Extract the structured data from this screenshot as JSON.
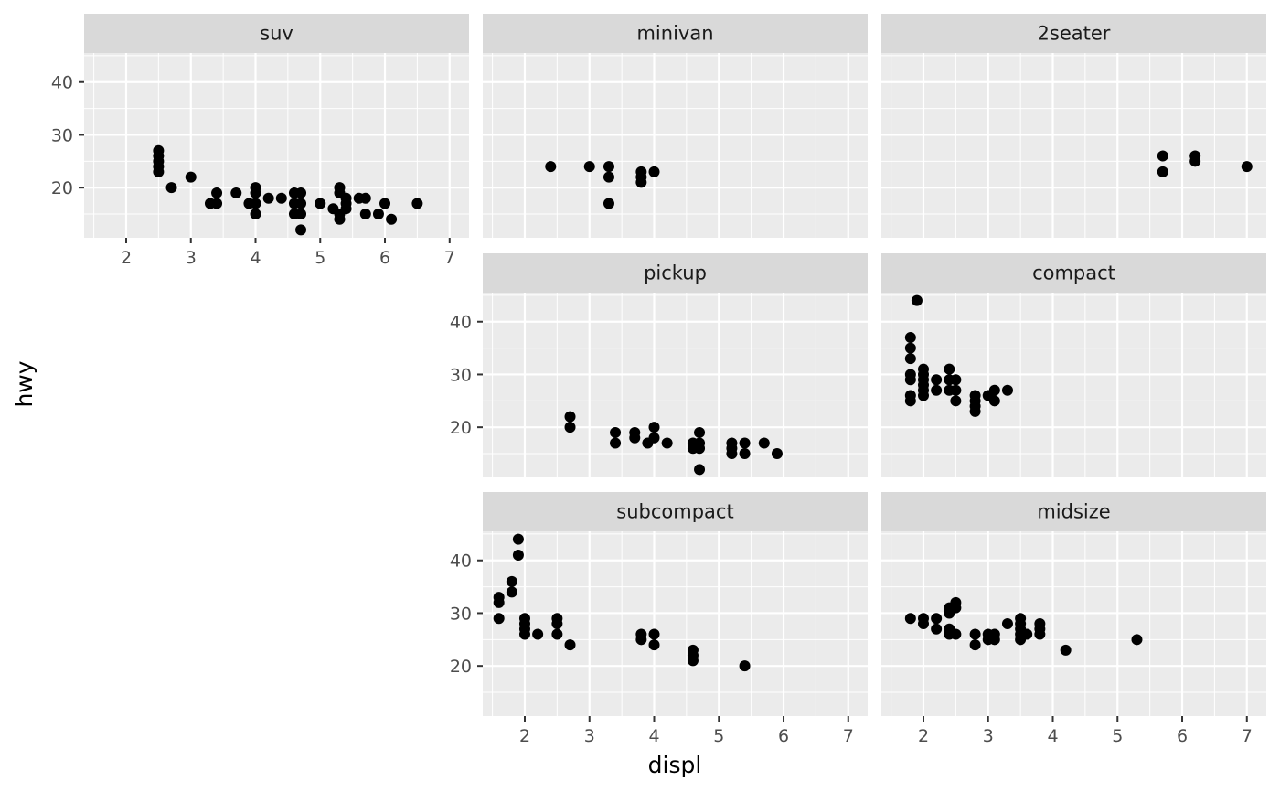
{
  "chart_data": {
    "type": "scatter",
    "facet_by": "class",
    "layout": {
      "ncol": 3,
      "nrow": 3
    },
    "xlabel": "displ",
    "ylabel": "hwy",
    "xlim": [
      1.35,
      7.3
    ],
    "ylim": [
      10.5,
      45.5
    ],
    "x_ticks": [
      2,
      3,
      4,
      5,
      6,
      7
    ],
    "y_ticks": [
      20,
      30,
      40
    ],
    "point_color": "#000000",
    "panel_background": "#ebebeb",
    "strip_background": "#d9d9d9",
    "grid": true,
    "legend": "none",
    "panels": [
      {
        "label": "suv",
        "points": [
          [
            2.5,
            27
          ],
          [
            2.5,
            26
          ],
          [
            2.5,
            25
          ],
          [
            2.5,
            24
          ],
          [
            2.5,
            23
          ],
          [
            2.7,
            20
          ],
          [
            3.0,
            22
          ],
          [
            3.3,
            17
          ],
          [
            3.4,
            19
          ],
          [
            3.4,
            17
          ],
          [
            3.7,
            19
          ],
          [
            3.9,
            17
          ],
          [
            4.0,
            20
          ],
          [
            4.0,
            19
          ],
          [
            4.0,
            17
          ],
          [
            4.0,
            15
          ],
          [
            4.2,
            18
          ],
          [
            4.4,
            18
          ],
          [
            4.6,
            19
          ],
          [
            4.6,
            17
          ],
          [
            4.6,
            15
          ],
          [
            4.7,
            19
          ],
          [
            4.7,
            17
          ],
          [
            4.7,
            15
          ],
          [
            4.7,
            12
          ],
          [
            5.0,
            17
          ],
          [
            5.2,
            16
          ],
          [
            5.3,
            20
          ],
          [
            5.3,
            19
          ],
          [
            5.3,
            15
          ],
          [
            5.3,
            14
          ],
          [
            5.4,
            18
          ],
          [
            5.4,
            17
          ],
          [
            5.4,
            16
          ],
          [
            5.6,
            18
          ],
          [
            5.7,
            18
          ],
          [
            5.7,
            15
          ],
          [
            5.9,
            15
          ],
          [
            6.0,
            17
          ],
          [
            6.1,
            14
          ],
          [
            6.5,
            17
          ]
        ]
      },
      {
        "label": "minivan",
        "points": [
          [
            2.4,
            24
          ],
          [
            3.0,
            24
          ],
          [
            3.3,
            24
          ],
          [
            3.3,
            22
          ],
          [
            3.3,
            17
          ],
          [
            3.8,
            23
          ],
          [
            3.8,
            22
          ],
          [
            3.8,
            21
          ],
          [
            4.0,
            23
          ]
        ]
      },
      {
        "label": "2seater",
        "points": [
          [
            5.7,
            26
          ],
          [
            5.7,
            23
          ],
          [
            6.2,
            26
          ],
          [
            6.2,
            25
          ],
          [
            7.0,
            24
          ]
        ]
      },
      {
        "label": "pickup",
        "points": [
          [
            2.7,
            22
          ],
          [
            2.7,
            20
          ],
          [
            3.4,
            19
          ],
          [
            3.4,
            17
          ],
          [
            3.7,
            19
          ],
          [
            3.7,
            18
          ],
          [
            3.9,
            17
          ],
          [
            4.0,
            20
          ],
          [
            4.0,
            18
          ],
          [
            4.2,
            17
          ],
          [
            4.6,
            17
          ],
          [
            4.6,
            16
          ],
          [
            4.7,
            19
          ],
          [
            4.7,
            17
          ],
          [
            4.7,
            16
          ],
          [
            4.7,
            12
          ],
          [
            5.2,
            17
          ],
          [
            5.2,
            16
          ],
          [
            5.2,
            15
          ],
          [
            5.4,
            17
          ],
          [
            5.4,
            15
          ],
          [
            5.7,
            17
          ],
          [
            5.9,
            15
          ]
        ]
      },
      {
        "label": "compact",
        "points": [
          [
            1.8,
            29
          ],
          [
            1.8,
            37
          ],
          [
            1.8,
            35
          ],
          [
            1.8,
            33
          ],
          [
            1.8,
            30
          ],
          [
            1.8,
            26
          ],
          [
            1.8,
            25
          ],
          [
            1.9,
            44
          ],
          [
            2.0,
            31
          ],
          [
            2.0,
            30
          ],
          [
            2.0,
            29
          ],
          [
            2.0,
            28
          ],
          [
            2.0,
            27
          ],
          [
            2.0,
            26
          ],
          [
            2.2,
            29
          ],
          [
            2.2,
            27
          ],
          [
            2.4,
            31
          ],
          [
            2.4,
            29
          ],
          [
            2.4,
            27
          ],
          [
            2.5,
            29
          ],
          [
            2.5,
            27
          ],
          [
            2.5,
            25
          ],
          [
            2.8,
            26
          ],
          [
            2.8,
            25
          ],
          [
            2.8,
            24
          ],
          [
            2.8,
            23
          ],
          [
            3.0,
            26
          ],
          [
            3.1,
            27
          ],
          [
            3.1,
            25
          ],
          [
            3.3,
            27
          ]
        ]
      },
      {
        "label": "subcompact",
        "points": [
          [
            1.6,
            33
          ],
          [
            1.6,
            32
          ],
          [
            1.6,
            29
          ],
          [
            1.8,
            36
          ],
          [
            1.8,
            34
          ],
          [
            1.9,
            44
          ],
          [
            1.9,
            41
          ],
          [
            2.0,
            29
          ],
          [
            2.0,
            28
          ],
          [
            2.0,
            27
          ],
          [
            2.0,
            26
          ],
          [
            2.2,
            26
          ],
          [
            2.5,
            29
          ],
          [
            2.5,
            28
          ],
          [
            2.5,
            26
          ],
          [
            2.7,
            24
          ],
          [
            3.8,
            26
          ],
          [
            3.8,
            25
          ],
          [
            4.0,
            26
          ],
          [
            4.0,
            24
          ],
          [
            4.6,
            23
          ],
          [
            4.6,
            22
          ],
          [
            4.6,
            21
          ],
          [
            5.4,
            20
          ]
        ]
      },
      {
        "label": "midsize",
        "points": [
          [
            1.8,
            29
          ],
          [
            2.0,
            29
          ],
          [
            2.0,
            28
          ],
          [
            2.2,
            29
          ],
          [
            2.2,
            27
          ],
          [
            2.4,
            31
          ],
          [
            2.4,
            30
          ],
          [
            2.4,
            27
          ],
          [
            2.4,
            26
          ],
          [
            2.5,
            32
          ],
          [
            2.5,
            31
          ],
          [
            2.5,
            26
          ],
          [
            2.8,
            26
          ],
          [
            2.8,
            24
          ],
          [
            3.0,
            26
          ],
          [
            3.0,
            25
          ],
          [
            3.1,
            26
          ],
          [
            3.1,
            25
          ],
          [
            3.3,
            28
          ],
          [
            3.5,
            29
          ],
          [
            3.5,
            28
          ],
          [
            3.5,
            27
          ],
          [
            3.5,
            26
          ],
          [
            3.5,
            25
          ],
          [
            3.6,
            26
          ],
          [
            3.8,
            28
          ],
          [
            3.8,
            27
          ],
          [
            3.8,
            26
          ],
          [
            4.2,
            23
          ],
          [
            5.3,
            25
          ]
        ]
      }
    ]
  }
}
